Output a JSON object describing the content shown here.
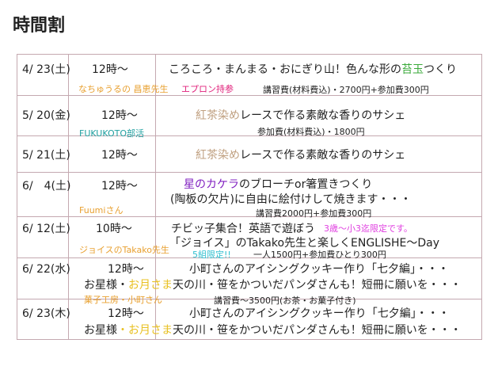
{
  "title": "時間割",
  "colors": {
    "border": "#c4a8b0",
    "orange": "#e8a030",
    "pink": "#e0207a",
    "green": "#3aaa3a",
    "teal": "#20a0a0",
    "tan": "#c0a080",
    "purple": "#8020c0",
    "magenta": "#e040e0"
  },
  "rows": [
    {
      "date": "4/ 23(土)",
      "time": "12時～",
      "title_a": "ころころ・まんまる・おにぎり山！色んな形の",
      "title_b": "苔玉",
      "title_c": "つくり",
      "teacher": "なちゅうるの 昌恵先生",
      "note": "エプロン持参",
      "fee": "講習費(材料費込)・2700円+参加費300円"
    },
    {
      "date": "5/ 20(金)",
      "time": "12時～",
      "title_a": "紅茶染め",
      "title_b": "レースで作る素敵な香りのサシェ",
      "teacher": "FUKUKOTO部活",
      "fee": "参加費(材料費込)・1800円"
    },
    {
      "date": "5/ 21(土)",
      "time": "12時～",
      "title_a": "紅茶染め",
      "title_b": "レースで作る素敵な香りのサシェ"
    },
    {
      "date": "6/　4(土)",
      "time": "12時～",
      "title_a": "星のカケラ",
      "title_b": "のブローチor箸置きつくり",
      "line2": "(陶板の欠片)に自由に絵付けして焼きます・・・",
      "teacher": "Fuumiさん",
      "fee": "講習費2000円+参加費300円"
    },
    {
      "date": "6/ 12(土)",
      "time": "10時～",
      "title_a": "チビッ子集合！英語で遊ぼう",
      "note": "3歳～小3迄限定です。",
      "line2": "「ジョイス」のTakako先生と楽しくENGLISHE～Day",
      "teacher": "ジョイスのTakako先生",
      "limit": "5組限定!!",
      "fee": "一人1500円+参加費ひとり300円"
    },
    {
      "date": "6/ 22(水)",
      "time": "12時～",
      "title_a": "小町さんのアイシングクッキー作り「七夕編」・・・",
      "l2a": "お星様・",
      "l2b": "お月さま",
      "l2c": "天の川・笹をかついだパンダさんも！短冊に願いを・・・",
      "teacher": "菓子工房・小町さん",
      "fee": "講習費～3500円(お茶・お菓子付き)"
    },
    {
      "date": "6/ 23(木)",
      "time": "12時～",
      "title_a": "小町さんのアイシングクッキー作り「七夕編」・・・",
      "l2a": "お星様",
      "l2b": "・お月さま",
      "l2c": "天の川・笹をかついだパンダさんも！短冊に願いを・・・"
    }
  ]
}
